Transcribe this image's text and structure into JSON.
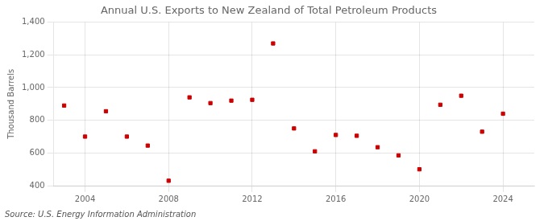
{
  "chart_data": {
    "type": "scatter",
    "title": "Annual U.S. Exports to New Zealand of Total Petroleum Products",
    "ylabel": "Thousand Barrels",
    "annotation": "Source: U.S. Energy Information Administration",
    "x": [
      2003,
      2004,
      2005,
      2006,
      2007,
      2008,
      2009,
      2010,
      2011,
      2012,
      2013,
      2014,
      2015,
      2016,
      2017,
      2018,
      2019,
      2020,
      2021,
      2022,
      2023,
      2024
    ],
    "values": [
      890,
      700,
      855,
      700,
      645,
      430,
      940,
      905,
      920,
      925,
      1270,
      750,
      610,
      710,
      705,
      635,
      585,
      500,
      895,
      950,
      730,
      840
    ],
    "color": "#cc0000",
    "marker": "square",
    "xlim": [
      2002.5,
      2025.5
    ],
    "xticks": [
      2004,
      2008,
      2012,
      2016,
      2020,
      2024
    ],
    "ylim": [
      400,
      1400
    ],
    "yticks": [
      400,
      600,
      800,
      {
        "value": 1000,
        "label": "1,000"
      },
      {
        "value": 1200,
        "label": "1,200"
      },
      {
        "value": 1400,
        "label": "1,400"
      }
    ],
    "grid": true
  }
}
